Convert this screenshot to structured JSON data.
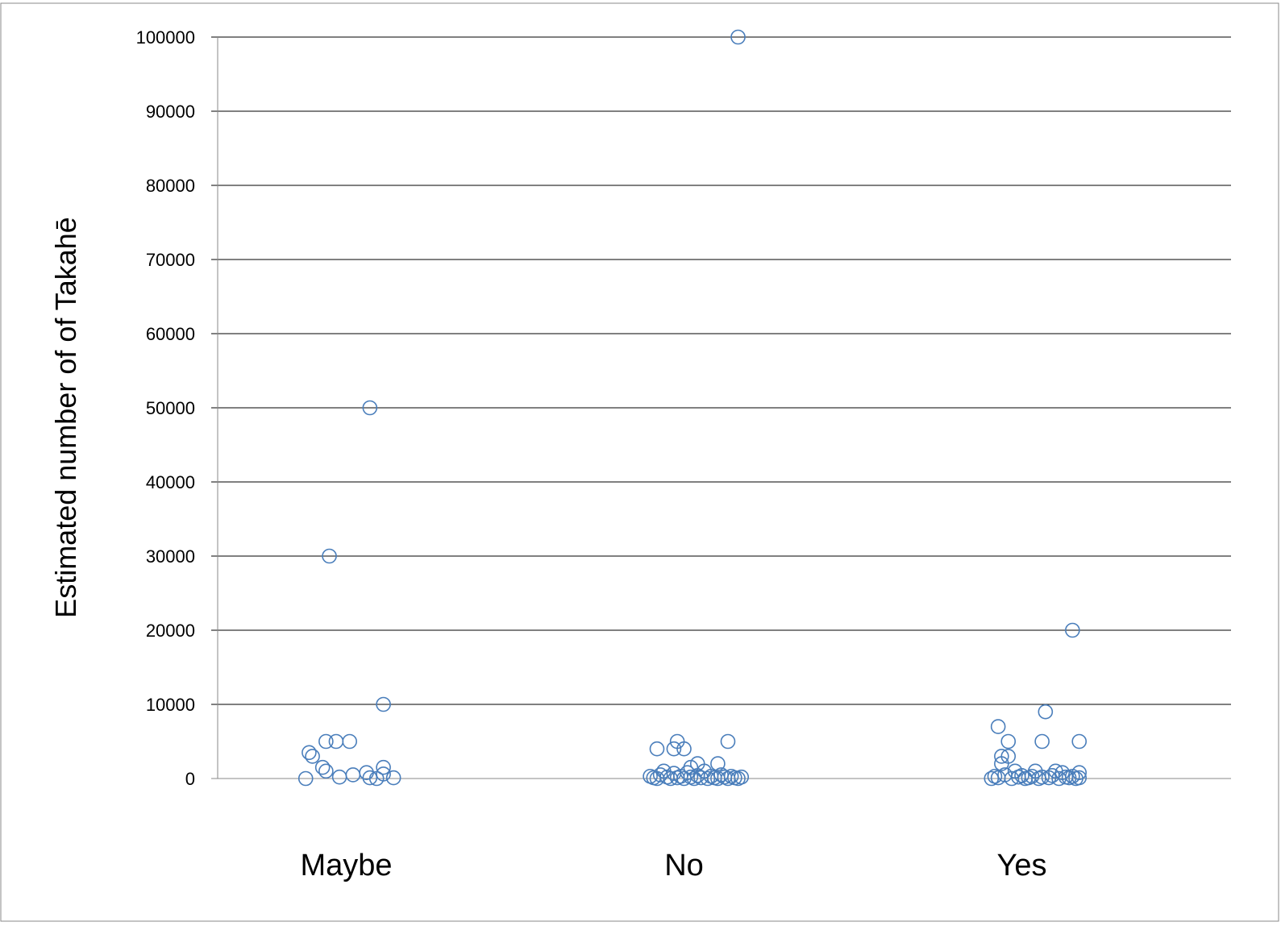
{
  "chart_data": {
    "type": "scatter",
    "ylabel": "Estimated number of of Takahē",
    "xlabel": "",
    "categories": [
      "Maybe",
      "No",
      "Yes"
    ],
    "ylim": [
      0,
      100000
    ],
    "yticks": [
      0,
      10000,
      20000,
      30000,
      40000,
      50000,
      60000,
      70000,
      80000,
      90000,
      100000
    ],
    "grid": true,
    "legend": "none",
    "marker": "open-circle",
    "color": "#4a7ebb",
    "points": [
      {
        "category": "Maybe",
        "jitter": -0.12,
        "y": 0
      },
      {
        "category": "Maybe",
        "jitter": -0.11,
        "y": 3500
      },
      {
        "category": "Maybe",
        "jitter": -0.1,
        "y": 3000
      },
      {
        "category": "Maybe",
        "jitter": -0.07,
        "y": 1500
      },
      {
        "category": "Maybe",
        "jitter": -0.06,
        "y": 1000
      },
      {
        "category": "Maybe",
        "jitter": -0.06,
        "y": 5000
      },
      {
        "category": "Maybe",
        "jitter": -0.05,
        "y": 30000
      },
      {
        "category": "Maybe",
        "jitter": -0.03,
        "y": 5000
      },
      {
        "category": "Maybe",
        "jitter": -0.02,
        "y": 200
      },
      {
        "category": "Maybe",
        "jitter": 0.01,
        "y": 5000
      },
      {
        "category": "Maybe",
        "jitter": 0.02,
        "y": 500
      },
      {
        "category": "Maybe",
        "jitter": 0.06,
        "y": 800
      },
      {
        "category": "Maybe",
        "jitter": 0.07,
        "y": 50000
      },
      {
        "category": "Maybe",
        "jitter": 0.07,
        "y": 100
      },
      {
        "category": "Maybe",
        "jitter": 0.09,
        "y": 0
      },
      {
        "category": "Maybe",
        "jitter": 0.11,
        "y": 10000
      },
      {
        "category": "Maybe",
        "jitter": 0.11,
        "y": 1500
      },
      {
        "category": "Maybe",
        "jitter": 0.11,
        "y": 600
      },
      {
        "category": "Maybe",
        "jitter": 0.14,
        "y": 100
      },
      {
        "category": "No",
        "jitter": 0.16,
        "y": 100000
      },
      {
        "category": "No",
        "jitter": -0.08,
        "y": 4000
      },
      {
        "category": "No",
        "jitter": -0.02,
        "y": 5000
      },
      {
        "category": "No",
        "jitter": -0.03,
        "y": 4000
      },
      {
        "category": "No",
        "jitter": 0.0,
        "y": 4000
      },
      {
        "category": "No",
        "jitter": 0.13,
        "y": 5000
      },
      {
        "category": "No",
        "jitter": 0.1,
        "y": 2000
      },
      {
        "category": "No",
        "jitter": 0.04,
        "y": 2000
      },
      {
        "category": "No",
        "jitter": 0.02,
        "y": 1500
      },
      {
        "category": "No",
        "jitter": -0.06,
        "y": 1000
      },
      {
        "category": "No",
        "jitter": -0.1,
        "y": 300
      },
      {
        "category": "No",
        "jitter": -0.09,
        "y": 100
      },
      {
        "category": "No",
        "jitter": -0.08,
        "y": 0
      },
      {
        "category": "No",
        "jitter": -0.07,
        "y": 500
      },
      {
        "category": "No",
        "jitter": -0.05,
        "y": 200
      },
      {
        "category": "No",
        "jitter": -0.04,
        "y": 0
      },
      {
        "category": "No",
        "jitter": -0.03,
        "y": 700
      },
      {
        "category": "No",
        "jitter": -0.02,
        "y": 100
      },
      {
        "category": "No",
        "jitter": -0.01,
        "y": 300
      },
      {
        "category": "No",
        "jitter": 0.0,
        "y": 0
      },
      {
        "category": "No",
        "jitter": 0.01,
        "y": 800
      },
      {
        "category": "No",
        "jitter": 0.02,
        "y": 200
      },
      {
        "category": "No",
        "jitter": 0.03,
        "y": 0
      },
      {
        "category": "No",
        "jitter": 0.04,
        "y": 400
      },
      {
        "category": "No",
        "jitter": 0.05,
        "y": 100
      },
      {
        "category": "No",
        "jitter": 0.06,
        "y": 1000
      },
      {
        "category": "No",
        "jitter": 0.07,
        "y": 0
      },
      {
        "category": "No",
        "jitter": 0.08,
        "y": 300
      },
      {
        "category": "No",
        "jitter": 0.09,
        "y": 100
      },
      {
        "category": "No",
        "jitter": 0.1,
        "y": 0
      },
      {
        "category": "No",
        "jitter": 0.11,
        "y": 500
      },
      {
        "category": "No",
        "jitter": 0.12,
        "y": 200
      },
      {
        "category": "No",
        "jitter": 0.13,
        "y": 0
      },
      {
        "category": "No",
        "jitter": 0.14,
        "y": 300
      },
      {
        "category": "No",
        "jitter": 0.15,
        "y": 100
      },
      {
        "category": "No",
        "jitter": 0.16,
        "y": 0
      },
      {
        "category": "No",
        "jitter": 0.17,
        "y": 200
      },
      {
        "category": "Yes",
        "jitter": 20000,
        "y": 20000
      },
      {
        "category": "Yes",
        "jitter": 0.07,
        "y": 9000
      },
      {
        "category": "Yes",
        "jitter": -0.07,
        "y": 7000
      },
      {
        "category": "Yes",
        "jitter": -0.04,
        "y": 5000
      },
      {
        "category": "Yes",
        "jitter": 0.06,
        "y": 5000
      },
      {
        "category": "Yes",
        "jitter": 0.17,
        "y": 5000
      },
      {
        "category": "Yes",
        "jitter": -0.06,
        "y": 3000
      },
      {
        "category": "Yes",
        "jitter": -0.04,
        "y": 3000
      },
      {
        "category": "Yes",
        "jitter": -0.06,
        "y": 2000
      },
      {
        "category": "Yes",
        "jitter": -0.02,
        "y": 1000
      },
      {
        "category": "Yes",
        "jitter": 0.04,
        "y": 1000
      },
      {
        "category": "Yes",
        "jitter": 0.1,
        "y": 1000
      },
      {
        "category": "Yes",
        "jitter": 0.12,
        "y": 800
      },
      {
        "category": "Yes",
        "jitter": 0.17,
        "y": 800
      },
      {
        "category": "Yes",
        "jitter": -0.09,
        "y": 0
      },
      {
        "category": "Yes",
        "jitter": -0.08,
        "y": 300
      },
      {
        "category": "Yes",
        "jitter": -0.07,
        "y": 100
      },
      {
        "category": "Yes",
        "jitter": -0.05,
        "y": 500
      },
      {
        "category": "Yes",
        "jitter": -0.03,
        "y": 0
      },
      {
        "category": "Yes",
        "jitter": -0.01,
        "y": 200
      },
      {
        "category": "Yes",
        "jitter": 0.0,
        "y": 400
      },
      {
        "category": "Yes",
        "jitter": 0.01,
        "y": 0
      },
      {
        "category": "Yes",
        "jitter": 0.02,
        "y": 100
      },
      {
        "category": "Yes",
        "jitter": 0.03,
        "y": 300
      },
      {
        "category": "Yes",
        "jitter": 0.05,
        "y": 0
      },
      {
        "category": "Yes",
        "jitter": 0.06,
        "y": 200
      },
      {
        "category": "Yes",
        "jitter": 0.08,
        "y": 100
      },
      {
        "category": "Yes",
        "jitter": 0.09,
        "y": 400
      },
      {
        "category": "Yes",
        "jitter": 0.11,
        "y": 0
      },
      {
        "category": "Yes",
        "jitter": 0.13,
        "y": 200
      },
      {
        "category": "Yes",
        "jitter": 0.14,
        "y": 100
      },
      {
        "category": "Yes",
        "jitter": 0.15,
        "y": 300
      },
      {
        "category": "Yes",
        "jitter": 0.16,
        "y": 0
      },
      {
        "category": "Yes",
        "jitter": 0.17,
        "y": 100
      }
    ]
  }
}
